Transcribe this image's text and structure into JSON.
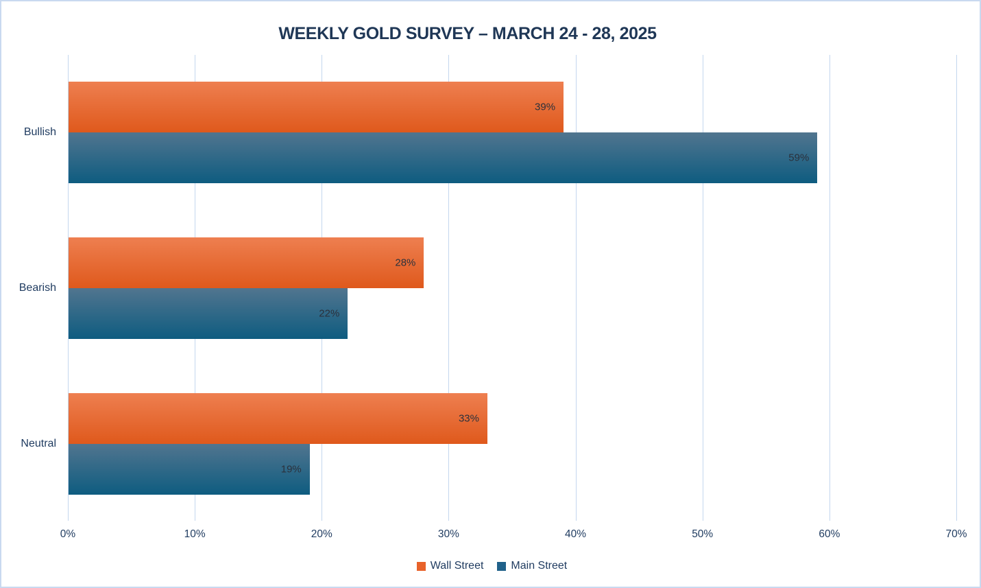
{
  "title": "WEEKLY GOLD SURVEY – MARCH 24 - 28, 2025",
  "chart_data": {
    "type": "bar",
    "orientation": "horizontal",
    "title": "WEEKLY GOLD SURVEY – MARCH 24 - 28, 2025",
    "categories": [
      "Bullish",
      "Bearish",
      "Neutral"
    ],
    "series": [
      {
        "name": "Wall Street",
        "values": [
          39,
          28,
          33
        ],
        "labels": [
          "39%",
          "28%",
          "33%"
        ],
        "color": "#e8622a",
        "color_top": "#ee7f50",
        "color_bottom": "#df591c"
      },
      {
        "name": "Main Street",
        "values": [
          59,
          22,
          19
        ],
        "labels": [
          "59%",
          "22%",
          "19%"
        ],
        "color": "#20618a",
        "color_top": "#51758f",
        "color_bottom": "#0e5c80"
      }
    ],
    "xlabel": "",
    "ylabel": "",
    "x_ticks": [
      "0%",
      "10%",
      "20%",
      "30%",
      "40%",
      "50%",
      "60%",
      "70%"
    ],
    "xlim": [
      0,
      70
    ],
    "grid": "vertical",
    "legend_position": "bottom"
  },
  "legend": {
    "items": [
      {
        "label": "Wall Street",
        "color": "#e8622a"
      },
      {
        "label": "Main Street",
        "color": "#20618a"
      }
    ]
  },
  "colors": {
    "title_text": "#1f3756",
    "axis_text": "#1e3a5f",
    "gridline": "#c3d6ee",
    "data_label_text": "#2b313c",
    "canvas_border": "#c9d9f0",
    "background": "#ffffff"
  }
}
